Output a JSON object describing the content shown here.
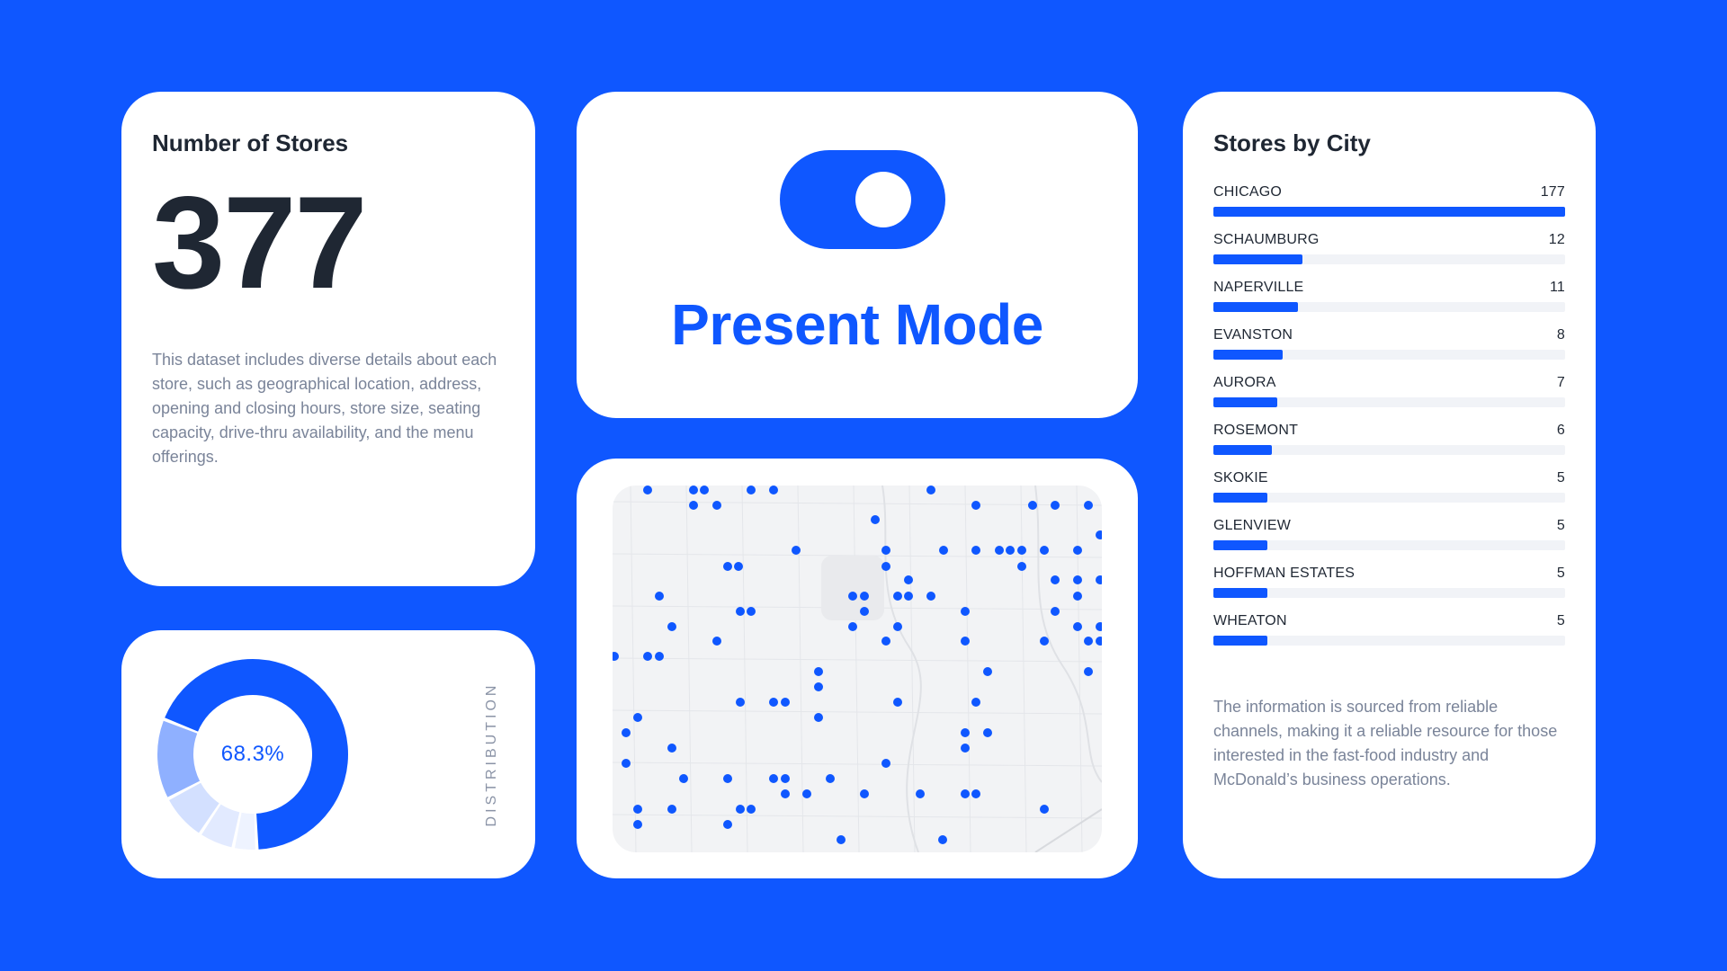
{
  "stores": {
    "title": "Number of Stores",
    "count": "377",
    "description": "This dataset includes diverse details about each store, such as geographical location, address, opening and closing hours, store size, seating capacity, drive-thru availability, and the menu offerings."
  },
  "present": {
    "label": "Present Mode",
    "toggle_state": "on"
  },
  "city": {
    "title": "Stores by City",
    "max": 177,
    "items": [
      {
        "name": "CHICAGO",
        "count": 177
      },
      {
        "name": "SCHAUMBURG",
        "count": 12
      },
      {
        "name": "NAPERVILLE",
        "count": 11
      },
      {
        "name": "EVANSTON",
        "count": 8
      },
      {
        "name": "AURORA",
        "count": 7
      },
      {
        "name": "ROSEMONT",
        "count": 6
      },
      {
        "name": "SKOKIE",
        "count": 5
      },
      {
        "name": "GLENVIEW",
        "count": 5
      },
      {
        "name": "HOFFMAN ESTATES",
        "count": 5
      },
      {
        "name": "WHEATON",
        "count": 5
      }
    ],
    "note": "The information is sourced from reliable channels, making it a reliable resource for those interested in the fast-food industry and McDonald’s business operations."
  },
  "distribution": {
    "label": "DISTRIBUTION",
    "center_value": "68.3%",
    "segments": [
      {
        "share": 0.683,
        "color": "#0f57ff"
      },
      {
        "share": 0.04,
        "color": "#eef3ff"
      },
      {
        "share": 0.06,
        "color": "#e2eaff"
      },
      {
        "share": 0.08,
        "color": "#d3e0ff"
      },
      {
        "share": 0.137,
        "color": "#8fb0ff"
      }
    ]
  },
  "map": {
    "dot_color": "#0f57ff",
    "store_count_shown": 377
  },
  "colors": {
    "background": "#0f57ff",
    "accent": "#0f57ff",
    "card": "#ffffff"
  }
}
